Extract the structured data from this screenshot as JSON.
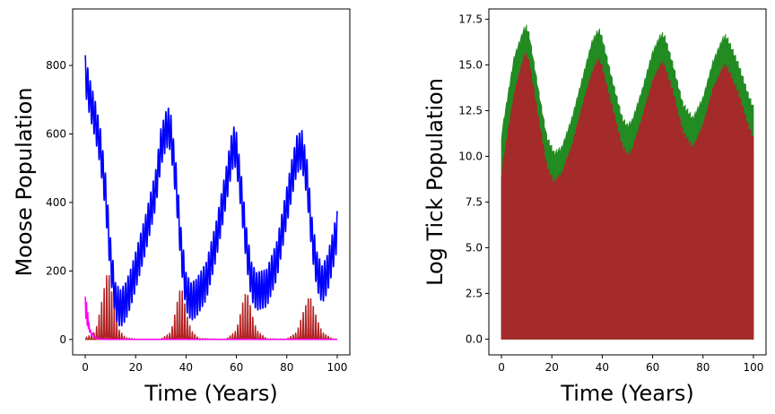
{
  "chart_data": [
    {
      "type": "line",
      "title": "",
      "xlabel": "Time (Years)",
      "ylabel": "Moose Population",
      "xlim": [
        -5,
        105
      ],
      "ylim": [
        -45,
        965
      ],
      "xticks": [
        0,
        20,
        40,
        60,
        80,
        100
      ],
      "yticks": [
        0,
        200,
        400,
        600,
        800
      ],
      "grid": false,
      "legend": "none",
      "series": [
        {
          "color": "#0000ff",
          "style": "seasonal-oscillating-line",
          "seasonal_amplitude": 55,
          "envelope_center": {
            "x": [
              0,
              2,
              4,
              6,
              8,
              10,
              12,
              14,
              16,
              18,
              20,
              24,
              28,
              30,
              32,
              33,
              34,
              36,
              38,
              40,
              42,
              44,
              48,
              52,
              56,
              58,
              59,
              60,
              62,
              64,
              66,
              68,
              72,
              76,
              80,
              82,
              84,
              86,
              88,
              90,
              92,
              94,
              96,
              98,
              100
            ],
            "y": [
              775,
              700,
              640,
              560,
              430,
              240,
              110,
              90,
              110,
              150,
              200,
              310,
              440,
              560,
              610,
              620,
              600,
              460,
              270,
              140,
              110,
              120,
              170,
              290,
              450,
              540,
              565,
              550,
              420,
              270,
              170,
              140,
              150,
              230,
              390,
              470,
              540,
              555,
              470,
              300,
              200,
              160,
              190,
              250,
              320
            ]
          }
        },
        {
          "color": "#b22222",
          "style": "seasonal-spikes",
          "spike_peaks": {
            "x": [
              0,
              4,
              6,
              8,
              9,
              10,
              11,
              13,
              16,
              20,
              30,
              34,
              36,
              37,
              38,
              39,
              40,
              42,
              45,
              52,
              56,
              60,
              62,
              63,
              64,
              65,
              66,
              68,
              72,
              80,
              84,
              86,
              88,
              89,
              90,
              92,
              94,
              98,
              100
            ],
            "y": [
              5,
              20,
              90,
              170,
              205,
              170,
              110,
              30,
              5,
              1,
              1,
              20,
              90,
              130,
              155,
              130,
              80,
              25,
              3,
              1,
              1,
              25,
              90,
              125,
              140,
              120,
              80,
              25,
              2,
              1,
              20,
              70,
              110,
              130,
              110,
              60,
              20,
              2,
              1
            ]
          }
        },
        {
          "color": "#ff00ff",
          "style": "decaying-oscillation",
          "x": [
            0,
            0.25,
            0.5,
            0.75,
            1,
            1.25,
            1.5,
            1.75,
            2,
            2.5,
            3,
            3.5,
            4,
            5,
            6,
            8,
            100
          ],
          "y": [
            125,
            60,
            110,
            40,
            80,
            30,
            50,
            20,
            30,
            12,
            18,
            6,
            8,
            3,
            1,
            0,
            0
          ]
        }
      ]
    },
    {
      "type": "area",
      "title": "",
      "xlabel": "Time (Years)",
      "ylabel": "Log Tick Population",
      "xlim": [
        -5,
        105
      ],
      "ylim": [
        -0.86,
        18.06
      ],
      "xticks": [
        0,
        20,
        40,
        60,
        80,
        100
      ],
      "yticks": [
        0.0,
        2.5,
        5.0,
        7.5,
        10.0,
        12.5,
        15.0,
        17.5
      ],
      "ytick_labels": [
        "0.0",
        "2.5",
        "5.0",
        "7.5",
        "10.0",
        "12.5",
        "15.0",
        "17.5"
      ],
      "grid": false,
      "legend": "none",
      "series": [
        {
          "color": "#228b22",
          "style": "seasonal-stepped-area",
          "x": [
            0,
            5,
            9,
            10,
            11,
            15,
            18,
            21,
            24,
            28,
            32,
            36,
            38,
            39,
            40,
            44,
            48,
            50,
            52,
            56,
            60,
            63,
            64,
            65,
            68,
            72,
            76,
            80,
            84,
            88,
            89,
            90,
            94,
            98,
            100
          ],
          "y": [
            11.3,
            15.5,
            17.1,
            17.2,
            16.8,
            13.5,
            11.2,
            10.3,
            10.6,
            12.2,
            14.3,
            16.4,
            16.9,
            17.0,
            16.6,
            14.3,
            12.2,
            11.8,
            12.1,
            13.8,
            15.8,
            16.7,
            16.8,
            16.6,
            15.2,
            13.0,
            12.2,
            13.3,
            15.3,
            16.6,
            16.7,
            16.5,
            15.2,
            13.5,
            12.8
          ]
        },
        {
          "color": "#a52a2a",
          "style": "seasonal-stepped-area",
          "x": [
            0,
            5,
            9,
            10,
            11,
            15,
            18,
            21,
            24,
            28,
            32,
            36,
            38,
            39,
            40,
            44,
            48,
            50,
            52,
            56,
            60,
            63,
            64,
            65,
            68,
            72,
            76,
            80,
            84,
            88,
            89,
            90,
            94,
            98,
            100
          ],
          "y": [
            9.2,
            13.5,
            15.6,
            15.7,
            15.3,
            12.0,
            9.6,
            8.7,
            9.2,
            10.7,
            12.8,
            14.7,
            15.3,
            15.4,
            15.0,
            12.8,
            10.7,
            10.2,
            10.5,
            12.3,
            14.2,
            15.1,
            15.2,
            15.0,
            13.7,
            11.5,
            10.6,
            11.8,
            13.8,
            15.0,
            15.1,
            14.9,
            13.6,
            11.8,
            11.1
          ]
        }
      ]
    }
  ]
}
